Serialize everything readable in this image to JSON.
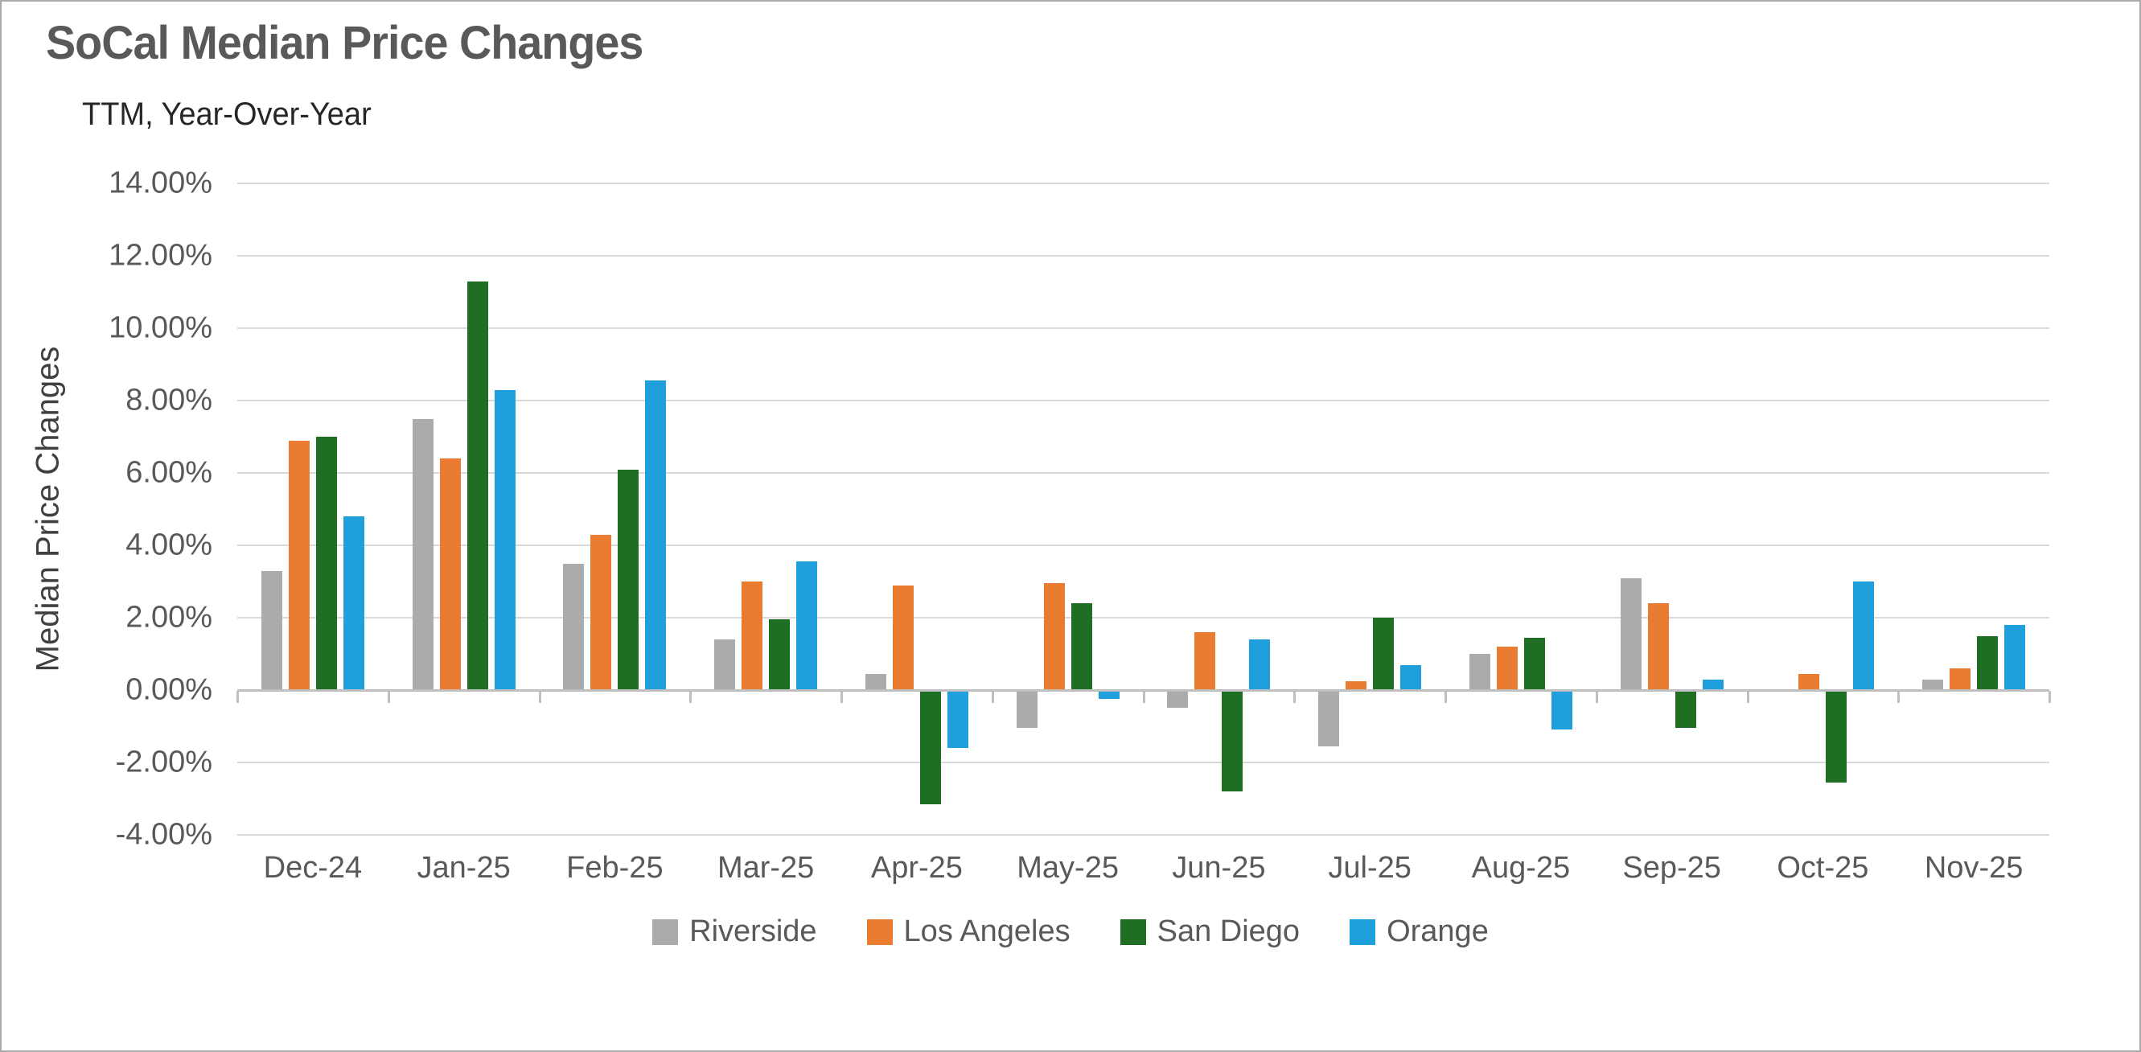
{
  "chart": {
    "title": "SoCal Median Price Changes",
    "subtitle": "TTM, Year-Over-Year",
    "y_axis_title": "Median Price Changes"
  },
  "chart_data": {
    "type": "bar",
    "title": "SoCal Median Price Changes",
    "subtitle": "TTM, Year-Over-Year",
    "xlabel": "",
    "ylabel": "Median Price Changes",
    "categories": [
      "Dec-24",
      "Jan-25",
      "Feb-25",
      "Mar-25",
      "Apr-25",
      "May-25",
      "Jun-25",
      "Jul-25",
      "Aug-25",
      "Sep-25",
      "Oct-25",
      "Nov-25"
    ],
    "series": [
      {
        "name": "Riverside",
        "color": "#ababab",
        "values": [
          3.3,
          7.5,
          3.5,
          1.4,
          0.45,
          -1.0,
          -0.45,
          -1.5,
          1.0,
          3.1,
          0.0,
          0.3
        ]
      },
      {
        "name": "Los Angeles",
        "color": "#e97c30",
        "values": [
          6.9,
          6.4,
          4.3,
          3.0,
          2.9,
          2.95,
          1.6,
          0.25,
          1.2,
          2.4,
          0.45,
          0.6
        ]
      },
      {
        "name": "San Diego",
        "color": "#1e6e24",
        "values": [
          7.0,
          11.3,
          6.1,
          1.95,
          -3.1,
          2.4,
          -2.75,
          2.0,
          1.45,
          -1.0,
          -2.5,
          1.5
        ]
      },
      {
        "name": "Orange",
        "color": "#1fa0dc",
        "values": [
          4.8,
          8.3,
          8.55,
          3.55,
          -1.55,
          -0.2,
          1.4,
          0.7,
          -1.05,
          0.3,
          3.0,
          1.8
        ]
      }
    ],
    "ylim": [
      -4,
      14
    ],
    "ytick_step": 2,
    "ytick_labels": [
      "14.00%",
      "12.00%",
      "10.00%",
      "8.00%",
      "6.00%",
      "4.00%",
      "2.00%",
      "0.00%",
      "-2.00%",
      "-4.00%"
    ],
    "grid": true,
    "legend_position": "bottom",
    "colors": {
      "gridline": "#d9d9d9",
      "axis_line": "#bfbfbf",
      "text": "#595959",
      "title": "#595959",
      "subtitle": "#262626"
    }
  }
}
